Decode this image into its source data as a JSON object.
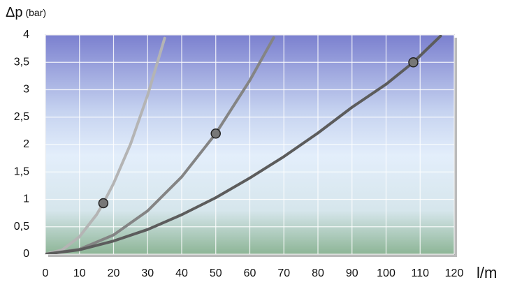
{
  "chart_data": {
    "type": "line",
    "y_label": "Δp",
    "y_unit": "(bar)",
    "x_label": "l/m",
    "xlim": [
      0,
      120
    ],
    "xticks": [
      0,
      10,
      20,
      30,
      40,
      50,
      60,
      70,
      80,
      90,
      100,
      110,
      120
    ],
    "ylim": [
      0,
      4
    ],
    "yticks": [
      0,
      {
        "value": 0.5,
        "label": "0,5"
      },
      1,
      {
        "value": 1.5,
        "label": "1,5"
      },
      2,
      {
        "value": 2.5,
        "label": "2,5"
      },
      3,
      {
        "value": 3.5,
        "label": "3,5"
      },
      4
    ],
    "grid": true,
    "series": [
      {
        "color": "#b4b4b4",
        "x": [
          0,
          5,
          10,
          15,
          17,
          20,
          25,
          30,
          35
        ],
        "values": [
          0,
          0.08,
          0.32,
          0.72,
          0.93,
          1.29,
          2.01,
          2.9,
          3.94
        ],
        "marker": {
          "x": 17,
          "y": 0.93
        }
      },
      {
        "color": "#848484",
        "x": [
          0,
          10,
          20,
          30,
          40,
          50,
          60,
          67
        ],
        "values": [
          0,
          0.09,
          0.35,
          0.79,
          1.41,
          2.2,
          3.17,
          3.95
        ],
        "marker": {
          "x": 50,
          "y": 2.2
        }
      },
      {
        "color": "#5c5c5c",
        "x": [
          0,
          10,
          20,
          30,
          40,
          50,
          60,
          70,
          80,
          90,
          100,
          108,
          116
        ],
        "values": [
          0,
          0.08,
          0.24,
          0.45,
          0.72,
          1.03,
          1.39,
          1.78,
          2.21,
          2.68,
          3.1,
          3.5,
          3.98
        ],
        "marker": {
          "x": 108,
          "y": 3.5
        }
      }
    ]
  }
}
